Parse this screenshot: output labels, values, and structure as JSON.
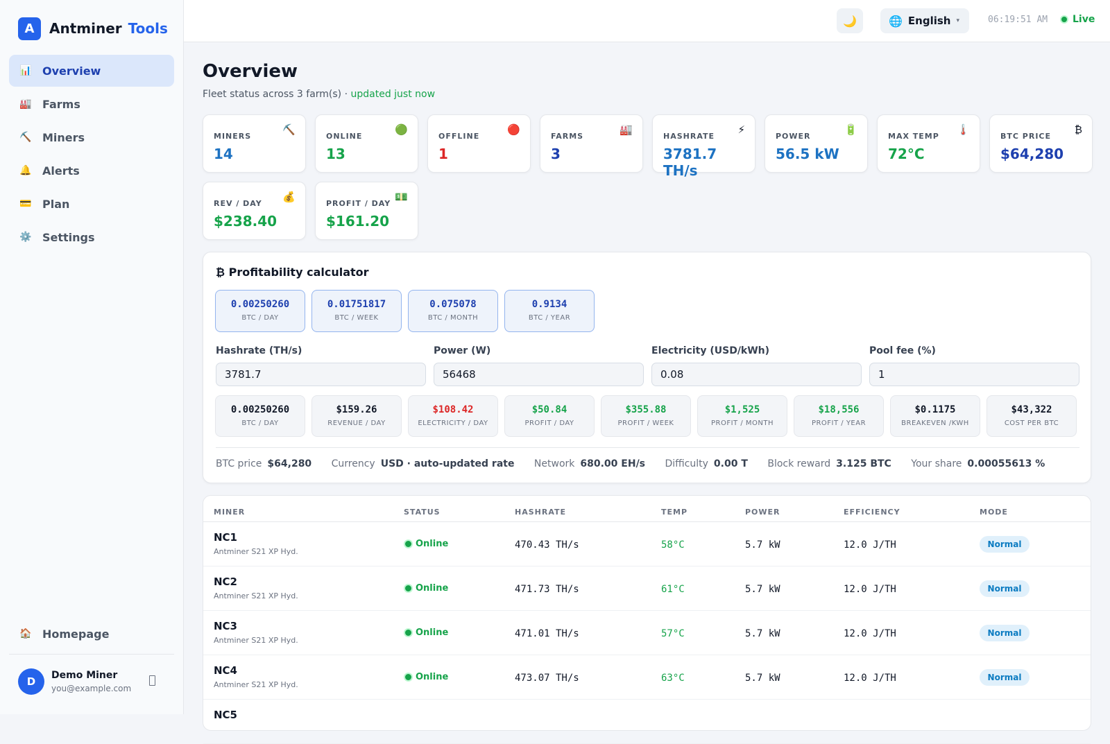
{
  "brand": {
    "logo_letter": "A",
    "name": "Antminer",
    "accent": "Tools"
  },
  "sidebar": {
    "items": [
      {
        "label": "Overview",
        "icon": "📊",
        "icon_name": "bar-chart-icon",
        "active": true
      },
      {
        "label": "Farms",
        "icon": "🏭",
        "icon_name": "factory-icon",
        "active": false
      },
      {
        "label": "Miners",
        "icon": "⛏️",
        "icon_name": "pickaxe-icon",
        "active": false
      },
      {
        "label": "Alerts",
        "icon": "🔔",
        "icon_name": "bell-icon",
        "active": false
      },
      {
        "label": "Plan",
        "icon": "💳",
        "icon_name": "credit-card-icon",
        "active": false
      },
      {
        "label": "Settings",
        "icon": "⚙️",
        "icon_name": "gear-icon",
        "active": false
      }
    ],
    "homepage": {
      "label": "Homepage",
      "icon": "🏠"
    },
    "user": {
      "initial": "D",
      "name": "Demo Miner",
      "email": "you@example.com"
    }
  },
  "topbar": {
    "theme_icon": "🌙",
    "language": {
      "icon": "🌐",
      "label": "English",
      "caret": "▾"
    },
    "clock": "06:19:51 AM",
    "status": "Live"
  },
  "page": {
    "title": "Overview",
    "subtitle": "Fleet status across 3 farm(s) ·",
    "updated": "updated just now"
  },
  "stats": [
    {
      "label": "MINERS",
      "value": "14",
      "icon": "⛏️",
      "color": "#1d72c2"
    },
    {
      "label": "ONLINE",
      "value": "13",
      "icon": "🟢",
      "color": "#16a34a"
    },
    {
      "label": "OFFLINE",
      "value": "1",
      "icon": "🔴",
      "color": "#dc2626"
    },
    {
      "label": "FARMS",
      "value": "3",
      "icon": "🏭",
      "color": "#1e40af"
    },
    {
      "label": "HASHRATE",
      "value": "3781.7 TH/s",
      "icon": "⚡",
      "color": "#1d72c2"
    },
    {
      "label": "POWER",
      "value": "56.5 kW",
      "icon": "🔋",
      "color": "#1d72c2"
    },
    {
      "label": "MAX TEMP",
      "value": "72°C",
      "icon": "🌡️",
      "color": "#16a34a"
    },
    {
      "label": "BTC PRICE",
      "value": "$64,280",
      "icon": "₿",
      "color": "#1e40af"
    },
    {
      "label": "REV / DAY",
      "value": "$238.40",
      "icon": "💰",
      "color": "#16a34a"
    },
    {
      "label": "PROFIT / DAY",
      "value": "$161.20",
      "icon": "💵",
      "color": "#16a34a"
    }
  ],
  "calculator": {
    "title": "₿ Profitability calculator",
    "btc_tiles": [
      {
        "value": "0.00250260",
        "label": "BTC / DAY"
      },
      {
        "value": "0.01751817",
        "label": "BTC / WEEK"
      },
      {
        "value": "0.075078",
        "label": "BTC / MONTH"
      },
      {
        "value": "0.9134",
        "label": "BTC / YEAR"
      }
    ],
    "fields": [
      {
        "label": "Hashrate (TH/s)",
        "value": "3781.7"
      },
      {
        "label": "Power (W)",
        "value": "56468"
      },
      {
        "label": "Electricity (USD/kWh)",
        "value": "0.08"
      },
      {
        "label": "Pool fee (%)",
        "value": "1"
      }
    ],
    "results": [
      {
        "value": "0.00250260",
        "label": "BTC / DAY",
        "color": "#111827"
      },
      {
        "value": "$159.26",
        "label": "REVENUE / DAY",
        "color": "#111827"
      },
      {
        "value": "$108.42",
        "label": "ELECTRICITY / DAY",
        "color": "#dc2626"
      },
      {
        "value": "$50.84",
        "label": "PROFIT / DAY",
        "color": "#16a34a"
      },
      {
        "value": "$355.88",
        "label": "PROFIT / WEEK",
        "color": "#16a34a"
      },
      {
        "value": "$1,525",
        "label": "PROFIT / MONTH",
        "color": "#16a34a"
      },
      {
        "value": "$18,556",
        "label": "PROFIT / YEAR",
        "color": "#16a34a"
      },
      {
        "value": "$0.1175",
        "label": "BREAKEVEN /KWH",
        "color": "#111827"
      },
      {
        "value": "$43,322",
        "label": "COST PER BTC",
        "color": "#111827"
      }
    ],
    "footer": [
      {
        "key": "BTC price",
        "value": "$64,280"
      },
      {
        "key": "Currency",
        "value": "USD · auto-updated rate"
      },
      {
        "key": "Network",
        "value": "680.00 EH/s"
      },
      {
        "key": "Difficulty",
        "value": "0.00 T"
      },
      {
        "key": "Block reward",
        "value": "3.125 BTC"
      },
      {
        "key": "Your share",
        "value": "0.00055613 %"
      }
    ]
  },
  "table": {
    "headers": [
      "MINER",
      "STATUS",
      "HASHRATE",
      "TEMP",
      "POWER",
      "EFFICIENCY",
      "MODE"
    ],
    "rows": [
      {
        "name": "NC1",
        "model": "Antminer S21 XP Hyd.",
        "status": "Online",
        "hashrate": "470.43 TH/s",
        "temp": "58°C",
        "power": "5.7 kW",
        "efficiency": "12.0 J/TH",
        "mode": "Normal"
      },
      {
        "name": "NC2",
        "model": "Antminer S21 XP Hyd.",
        "status": "Online",
        "hashrate": "471.73 TH/s",
        "temp": "61°C",
        "power": "5.7 kW",
        "efficiency": "12.0 J/TH",
        "mode": "Normal"
      },
      {
        "name": "NC3",
        "model": "Antminer S21 XP Hyd.",
        "status": "Online",
        "hashrate": "471.01 TH/s",
        "temp": "57°C",
        "power": "5.7 kW",
        "efficiency": "12.0 J/TH",
        "mode": "Normal"
      },
      {
        "name": "NC4",
        "model": "Antminer S21 XP Hyd.",
        "status": "Online",
        "hashrate": "473.07 TH/s",
        "temp": "63°C",
        "power": "5.7 kW",
        "efficiency": "12.0 J/TH",
        "mode": "Normal"
      },
      {
        "name": "NC5",
        "model": "",
        "status": "",
        "hashrate": "",
        "temp": "",
        "power": "",
        "efficiency": "",
        "mode": ""
      }
    ]
  }
}
